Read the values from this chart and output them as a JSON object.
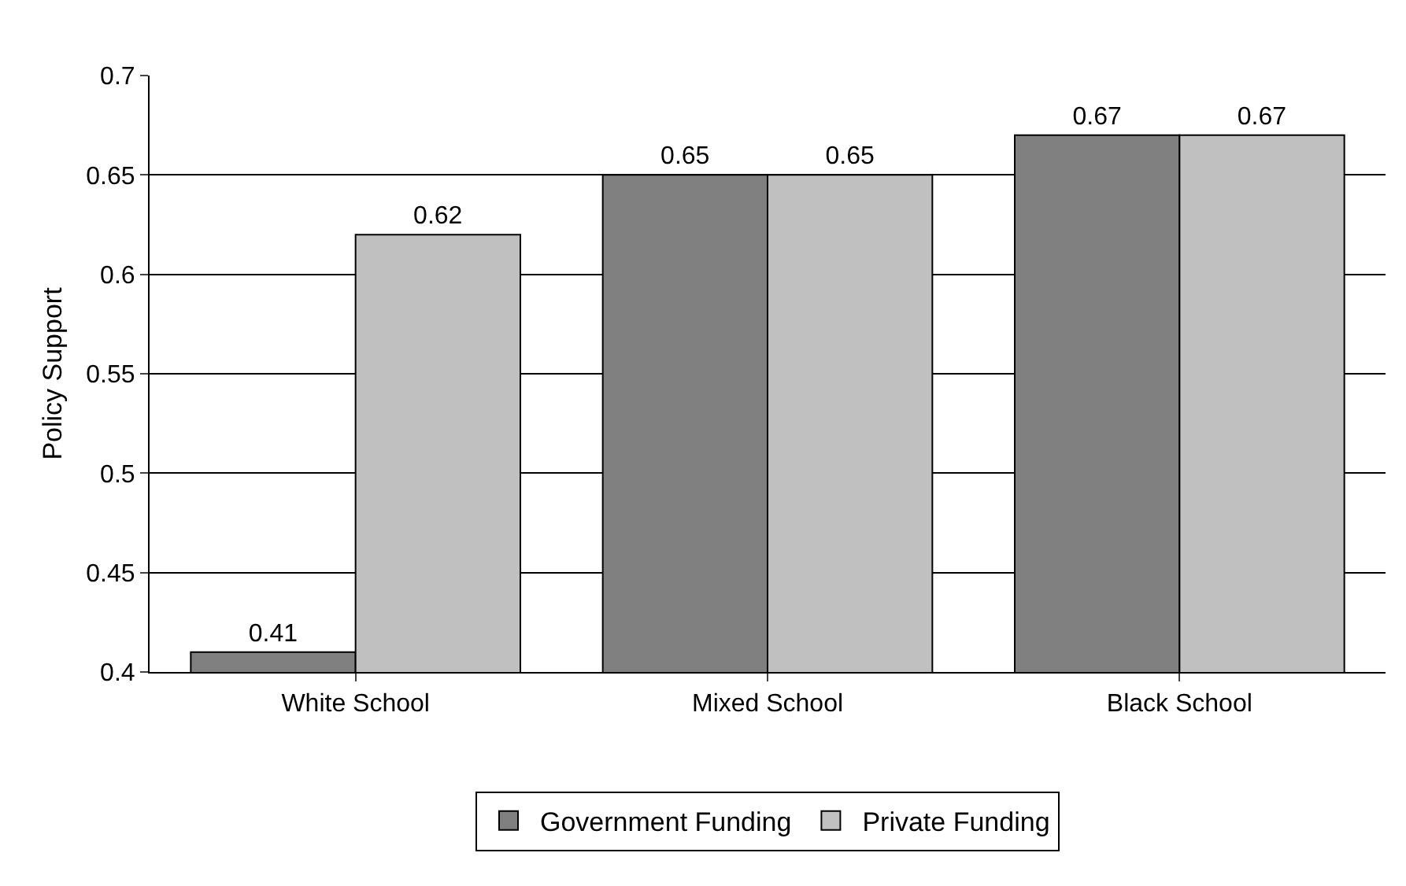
{
  "chart_data": {
    "type": "bar",
    "ylabel": "Policy Support",
    "categories": [
      "White School",
      "Mixed School",
      "Black School"
    ],
    "series": [
      {
        "name": "Government Funding",
        "color": "#808080",
        "values": [
          0.41,
          0.65,
          0.67
        ]
      },
      {
        "name": "Private Funding",
        "color": "#c0c0c0",
        "values": [
          0.62,
          0.65,
          0.67
        ]
      }
    ],
    "ylim": [
      0.4,
      0.7
    ],
    "yticks": [
      0.4,
      0.45,
      0.5,
      0.55,
      0.6,
      0.65,
      0.7
    ],
    "grid": "y",
    "legend": "bottom",
    "data_labels": true
  }
}
